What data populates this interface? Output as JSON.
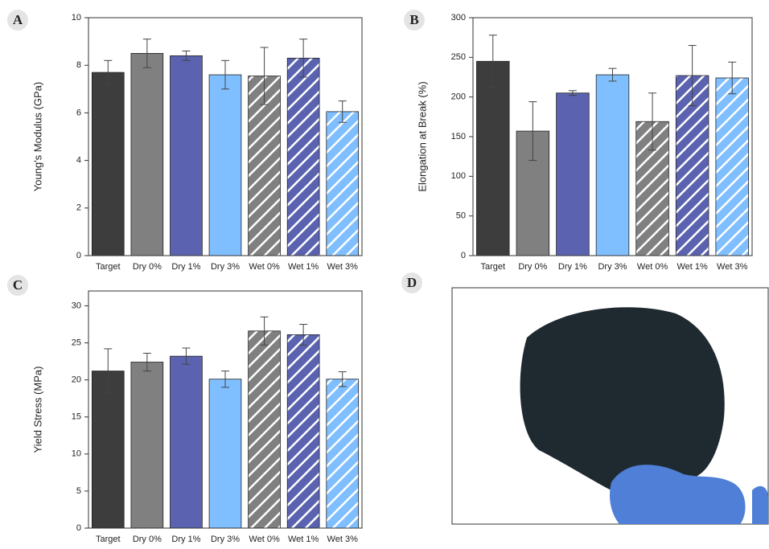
{
  "chart_data": [
    {
      "type": "bar",
      "panel": "A",
      "ylabel": "Young's Modulus (GPa)",
      "categories": [
        "Target",
        "Dry 0%",
        "Dry 1%",
        "Dry 3%",
        "Wet 0%",
        "Wet 1%",
        "Wet 3%"
      ],
      "values": [
        7.7,
        8.5,
        8.4,
        7.6,
        7.55,
        8.3,
        6.05
      ],
      "errors": [
        0.5,
        0.6,
        0.2,
        0.6,
        1.2,
        0.8,
        0.45
      ],
      "colors": [
        "#3d3d3d",
        "#808080",
        "#5b63b0",
        "#80bfff",
        "#808080",
        "#5b63b0",
        "#80bfff"
      ],
      "hatched": [
        false,
        false,
        false,
        false,
        true,
        true,
        true
      ],
      "ylim": [
        0,
        10
      ],
      "yticks": [
        0,
        2,
        4,
        6,
        8,
        10
      ]
    },
    {
      "type": "bar",
      "panel": "B",
      "ylabel": "Elongation at Break (%)",
      "categories": [
        "Target",
        "Dry 0%",
        "Dry 1%",
        "Dry 3%",
        "Wet 0%",
        "Wet 1%",
        "Wet 3%"
      ],
      "values": [
        245,
        157,
        205,
        228,
        169,
        227,
        224
      ],
      "errors": [
        33,
        37,
        3,
        8,
        36,
        38,
        20
      ],
      "colors": [
        "#3d3d3d",
        "#808080",
        "#5b63b0",
        "#80bfff",
        "#808080",
        "#5b63b0",
        "#80bfff"
      ],
      "hatched": [
        false,
        false,
        false,
        false,
        true,
        true,
        true
      ],
      "ylim": [
        0,
        300
      ],
      "yticks": [
        0,
        50,
        100,
        150,
        200,
        250,
        300
      ]
    },
    {
      "type": "bar",
      "panel": "C",
      "ylabel": "Yield Stress (MPa)",
      "categories": [
        "Target",
        "Dry 0%",
        "Dry 1%",
        "Dry 3%",
        "Wet 0%",
        "Wet 1%",
        "Wet 3%"
      ],
      "values": [
        21.2,
        22.4,
        23.2,
        20.1,
        26.6,
        26.1,
        20.1
      ],
      "errors": [
        3,
        1.2,
        1.1,
        1.1,
        1.9,
        1.4,
        1
      ],
      "colors": [
        "#3d3d3d",
        "#808080",
        "#5b63b0",
        "#80bfff",
        "#808080",
        "#5b63b0",
        "#80bfff"
      ],
      "hatched": [
        false,
        false,
        false,
        false,
        true,
        true,
        true
      ],
      "ylim": [
        0,
        32
      ],
      "yticks": [
        0,
        5,
        10,
        15,
        20,
        25,
        30
      ]
    }
  ],
  "photo_panel": {
    "label": "D"
  }
}
